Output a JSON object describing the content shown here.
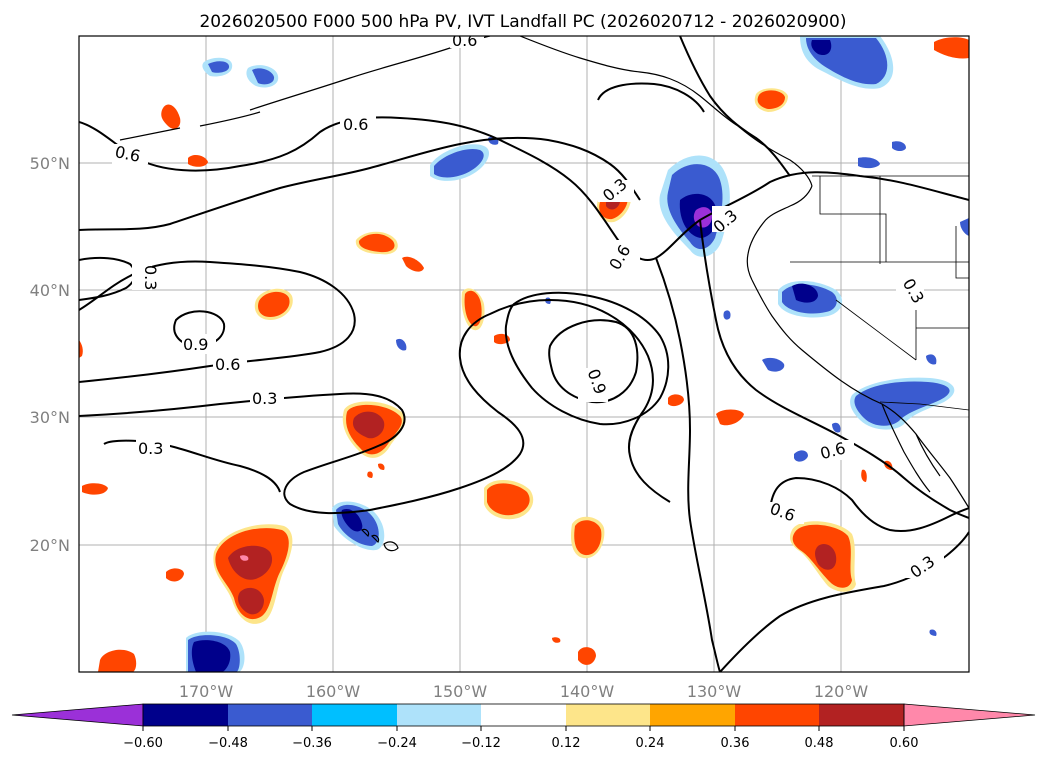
{
  "title": "2026020500 F000 500 hPa PV, IVT Landfall PC (2026020712 - 2026020900)",
  "axes": {
    "lon_ticks": [
      "170°W",
      "160°W",
      "150°W",
      "140°W",
      "130°W",
      "120°W"
    ],
    "lat_ticks": [
      "50°N",
      "40°N",
      "30°N",
      "20°N"
    ]
  },
  "contour_labels": [
    "0.6",
    "0.6",
    "0.3",
    "0.9",
    "0.6",
    "0.3",
    "0.3",
    "0.3",
    "0.6",
    "0.3",
    "0.9",
    "0.6",
    "0.6",
    "0.3",
    "0.3",
    "0.6"
  ],
  "colorbar": {
    "ticks": [
      "−0.60",
      "−0.48",
      "−0.36",
      "−0.24",
      "−0.12",
      "0.12",
      "0.24",
      "0.36",
      "0.48",
      "0.60"
    ],
    "colors": {
      "under": "#9b30d8",
      "c1": "#00008b",
      "c2": "#3a5bd0",
      "c3": "#00bfff",
      "c4": "#aee2fa",
      "c5": "#ffffff",
      "c6": "#fde58a",
      "c7": "#ffa500",
      "c8": "#ff4500",
      "c9": "#b22222",
      "over": "#ff88aa"
    }
  }
}
